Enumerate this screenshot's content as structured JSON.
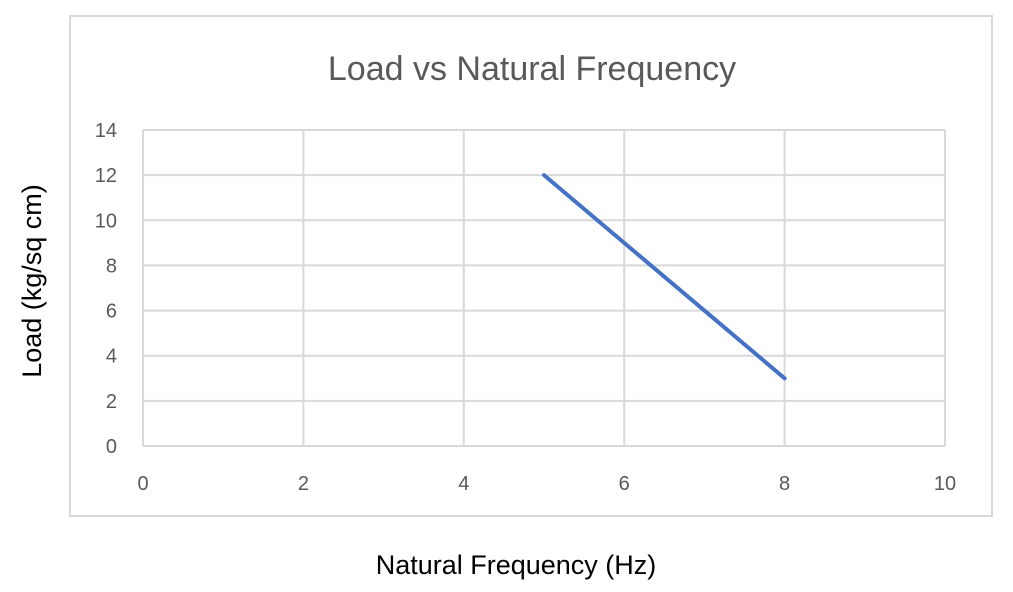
{
  "chart_data": {
    "type": "line",
    "title": "Load vs Natural Frequency",
    "xlabel": "Natural Frequency (Hz)",
    "ylabel": "Load (kg/sq cm)",
    "xlim": [
      0,
      10
    ],
    "ylim": [
      0,
      14
    ],
    "xticks": [
      0,
      2,
      4,
      6,
      8,
      10
    ],
    "yticks": [
      0,
      2,
      4,
      6,
      8,
      10,
      12,
      14
    ],
    "grid": true,
    "legend": "none",
    "series": [
      {
        "name": "Load",
        "color": "#4472c4",
        "x": [
          5,
          8
        ],
        "y": [
          12,
          3
        ]
      }
    ]
  }
}
